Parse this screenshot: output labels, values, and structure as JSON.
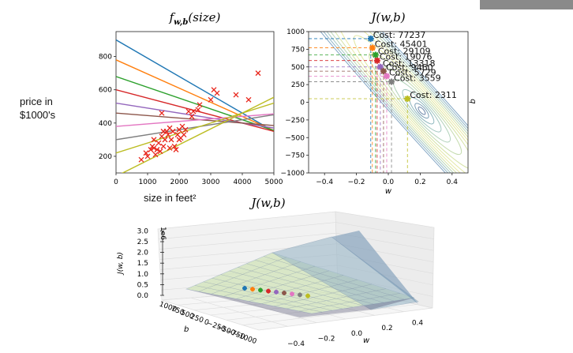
{
  "watermark": "",
  "side": {
    "ylabel_line1": "price in",
    "ylabel_line2": "$1000's",
    "xlabel": "size in feet²"
  },
  "chart_data": [
    {
      "type": "scatter",
      "title": "f_{w,b}(size)",
      "xlim": [
        0,
        5000
      ],
      "ylim": [
        100,
        950
      ],
      "xticks": [
        0,
        1000,
        2000,
        3000,
        4000,
        5000
      ],
      "yticks": [
        200,
        400,
        600,
        800
      ],
      "points": [
        [
          800,
          180
        ],
        [
          950,
          220
        ],
        [
          1000,
          200
        ],
        [
          1100,
          240
        ],
        [
          1150,
          260
        ],
        [
          1200,
          250
        ],
        [
          1200,
          300
        ],
        [
          1250,
          210
        ],
        [
          1300,
          240
        ],
        [
          1350,
          280
        ],
        [
          1400,
          230
        ],
        [
          1450,
          320
        ],
        [
          1450,
          460
        ],
        [
          1500,
          260
        ],
        [
          1550,
          300
        ],
        [
          1600,
          350
        ],
        [
          1650,
          330
        ],
        [
          1700,
          370
        ],
        [
          1750,
          300
        ],
        [
          1800,
          350
        ],
        [
          1850,
          260
        ],
        [
          1900,
          240
        ],
        [
          1950,
          330
        ],
        [
          2000,
          300
        ],
        [
          2050,
          310
        ],
        [
          2100,
          380
        ],
        [
          2150,
          330
        ],
        [
          2200,
          360
        ],
        [
          2300,
          470
        ],
        [
          2400,
          440
        ],
        [
          2450,
          470
        ],
        [
          2600,
          480
        ],
        [
          2650,
          510
        ],
        [
          3000,
          540
        ],
        [
          3100,
          600
        ],
        [
          3200,
          580
        ],
        [
          3800,
          570
        ],
        [
          4200,
          540
        ],
        [
          4500,
          700
        ],
        [
          1500,
          350
        ],
        [
          1700,
          250
        ],
        [
          2000,
          360
        ]
      ],
      "lines": [
        {
          "w": -0.11,
          "b": 900,
          "color": "#1f77b4"
        },
        {
          "w": -0.085,
          "b": 780,
          "color": "#ff7f0e"
        },
        {
          "w": -0.065,
          "b": 680,
          "color": "#2ca02c"
        },
        {
          "w": -0.05,
          "b": 600,
          "color": "#d62728"
        },
        {
          "w": -0.03,
          "b": 520,
          "color": "#9467bd"
        },
        {
          "w": -0.015,
          "b": 460,
          "color": "#8c564b"
        },
        {
          "w": 0.015,
          "b": 380,
          "color": "#e377c2"
        },
        {
          "w": 0.03,
          "b": 300,
          "color": "#7f7f7f"
        },
        {
          "w": 0.06,
          "b": 220,
          "color": "#bcbd22"
        },
        {
          "w": 0.095,
          "b": 80,
          "color": "#bcbd22"
        }
      ],
      "scatter_color": "#e8261c"
    },
    {
      "type": "contour",
      "title": "J(w,b)",
      "xlabel": "w",
      "ylabel": "b",
      "xlim": [
        -0.5,
        0.5
      ],
      "ylim": [
        -1000,
        1000
      ],
      "xticks": [
        -0.4,
        -0.2,
        0.0,
        0.2,
        0.4
      ],
      "yticks": [
        1000,
        750,
        500,
        250,
        0,
        -250,
        -500,
        -750,
        -1000
      ],
      "path": [
        {
          "w": -0.11,
          "b": 900,
          "cost": "Cost: 77237",
          "color": "#1f77b4"
        },
        {
          "w": -0.1,
          "b": 770,
          "cost": "Cost: 45401",
          "color": "#ff7f0e"
        },
        {
          "w": -0.08,
          "b": 670,
          "cost": "Cost: 29109",
          "color": "#2ca02c"
        },
        {
          "w": -0.07,
          "b": 590,
          "cost": "Cost: 19076",
          "color": "#d62728"
        },
        {
          "w": -0.05,
          "b": 500,
          "cost": "Cost: 13318",
          "color": "#9467bd"
        },
        {
          "w": -0.03,
          "b": 440,
          "cost": "Cost: 9460",
          "color": "#8c564b"
        },
        {
          "w": -0.01,
          "b": 370,
          "cost": "Cost: 5729",
          "color": "#e377c2"
        },
        {
          "w": 0.02,
          "b": 290,
          "cost": "Cost: 3559",
          "color": "#7f7f7f"
        },
        {
          "w": 0.12,
          "b": 50,
          "cost": "Cost: 2311",
          "color": "#bcbd22"
        }
      ]
    },
    {
      "type": "surface",
      "title": "J(w,b)",
      "xlabel": "w",
      "ylabel": "b",
      "zlabel": "J(w, b)",
      "zscale": "1e6",
      "zticks": [
        "0.0",
        "0.5",
        "1.0",
        "1.5",
        "2.0",
        "2.5",
        "3.0"
      ],
      "wticks": [
        "−0.4",
        "−0.2",
        "0.0",
        "0.2",
        "0.4"
      ],
      "bticks": [
        "1000",
        "750",
        "500",
        "250",
        "0",
        "−250",
        "−500",
        "−750",
        "−1000"
      ]
    }
  ]
}
